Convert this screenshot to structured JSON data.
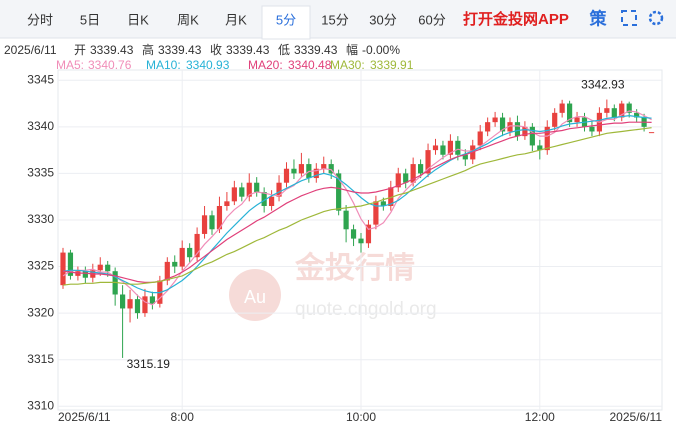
{
  "tabs": [
    "分时",
    "5日",
    "日K",
    "周K",
    "月K",
    "5分",
    "15分",
    "30分",
    "60分"
  ],
  "active_tab": 5,
  "app_link": "打开金投网APP",
  "tool": "策",
  "info": {
    "date": "2025/6/11",
    "open_label": "开",
    "open": 3339.43,
    "high_label": "高",
    "high": 3339.43,
    "close_label": "收",
    "close": 3339.43,
    "low_label": "低",
    "low": 3339.43,
    "change_label": "幅",
    "change": "-0.00%"
  },
  "watermark": {
    "logo": "Au",
    "text": "金投行情",
    "url": "quote.cngold.org"
  },
  "chart_data": {
    "type": "candlestick",
    "up_color": "#e8413e",
    "down_color": "#2ea44f",
    "grid": true,
    "ylim": [
      3309.6,
      3346.1
    ],
    "yticks": [
      3310,
      3315,
      3320,
      3325,
      3330,
      3335,
      3340,
      3345
    ],
    "categories": [
      "2025/6/11",
      null,
      null,
      null,
      null,
      null,
      null,
      null,
      null,
      null,
      null,
      null,
      null,
      null,
      null,
      null,
      "8:00",
      null,
      null,
      null,
      null,
      null,
      null,
      null,
      null,
      null,
      null,
      null,
      null,
      null,
      null,
      null,
      null,
      null,
      null,
      null,
      null,
      null,
      null,
      null,
      "10:00",
      null,
      null,
      null,
      null,
      null,
      null,
      null,
      null,
      null,
      null,
      null,
      null,
      null,
      null,
      null,
      null,
      null,
      null,
      null,
      null,
      null,
      null,
      null,
      "12:00",
      null,
      null,
      null,
      null,
      null,
      null,
      null,
      null,
      null,
      null,
      null,
      null,
      null,
      null,
      "2025/6/11"
    ],
    "open": [
      3323.0,
      3326.5,
      3324.0,
      3324.5,
      3323.8,
      3324.6,
      3325.2,
      3324.5,
      3322.0,
      3320.5,
      3321.5,
      3320.0,
      3321.8,
      3321.0,
      3323.5,
      3325.5,
      3325.0,
      3327.0,
      3326.0,
      3328.5,
      3330.5,
      3329.0,
      3331.5,
      3332.0,
      3333.5,
      3332.5,
      3334.0,
      3333.0,
      3331.5,
      3332.5,
      3334.0,
      3335.5,
      3335.0,
      3336.0,
      3334.5,
      3335.5,
      3336.0,
      3335.0,
      3331.0,
      3329.0,
      3328.0,
      3327.5,
      3329.5,
      3332.0,
      3331.5,
      3333.5,
      3335.0,
      3334.0,
      3336.0,
      3335.0,
      3337.5,
      3338.0,
      3337.0,
      3338.5,
      3337.0,
      3336.5,
      3338.0,
      3339.5,
      3340.5,
      3341.0,
      3339.5,
      3340.5,
      3339.0,
      3340.0,
      3338.0,
      3337.5,
      3340.0,
      3341.5,
      3342.5,
      3340.5,
      3341.0,
      3340.0,
      3339.5,
      3341.5,
      3342.0,
      3341.0,
      3342.5,
      3341.5,
      3341.0,
      3339.43
    ],
    "high": [
      3327.0,
      3326.8,
      3325.0,
      3325.0,
      3325.3,
      3326.0,
      3325.6,
      3324.9,
      3323.0,
      3322.5,
      3322.0,
      3322.6,
      3322.3,
      3324.0,
      3326.0,
      3326.2,
      3327.8,
      3327.5,
      3329.2,
      3331.5,
      3331.0,
      3332.5,
      3333.0,
      3334.2,
      3334.0,
      3335.0,
      3334.6,
      3333.5,
      3333.2,
      3334.8,
      3336.2,
      3336.5,
      3337.2,
      3336.6,
      3336.1,
      3336.8,
      3336.5,
      3335.4,
      3331.6,
      3329.5,
      3328.6,
      3330.0,
      3332.6,
      3332.4,
      3334.2,
      3335.6,
      3335.5,
      3336.7,
      3336.5,
      3338.2,
      3338.7,
      3338.5,
      3339.2,
      3339.0,
      3337.6,
      3338.6,
      3340.2,
      3341.0,
      3341.6,
      3341.5,
      3341.0,
      3341.2,
      3340.6,
      3340.4,
      3338.6,
      3340.7,
      3342.0,
      3342.9,
      3342.8,
      3341.6,
      3341.5,
      3340.6,
      3342.1,
      3342.93,
      3342.4,
      3342.8,
      3342.7,
      3341.9,
      3341.4,
      3339.43
    ],
    "low": [
      3322.6,
      3323.6,
      3323.5,
      3323.2,
      3323.3,
      3324.0,
      3323.9,
      3320.8,
      3315.19,
      3319.0,
      3319.4,
      3319.6,
      3320.4,
      3320.6,
      3323.0,
      3324.3,
      3324.6,
      3325.4,
      3325.6,
      3328.0,
      3328.4,
      3328.6,
      3331.0,
      3331.6,
      3332.0,
      3332.0,
      3332.5,
      3330.8,
      3331.0,
      3332.0,
      3333.5,
      3334.4,
      3334.6,
      3334.0,
      3334.0,
      3335.0,
      3334.4,
      3330.5,
      3327.6,
      3327.2,
      3326.5,
      3327.0,
      3329.0,
      3331.0,
      3331.0,
      3333.0,
      3333.4,
      3333.6,
      3334.5,
      3334.6,
      3337.0,
      3336.5,
      3336.6,
      3336.4,
      3335.8,
      3336.0,
      3337.5,
      3339.0,
      3340.0,
      3339.0,
      3339.0,
      3338.5,
      3338.6,
      3337.4,
      3336.5,
      3337.0,
      3339.6,
      3341.0,
      3340.0,
      3340.0,
      3339.5,
      3339.0,
      3339.0,
      3341.0,
      3340.6,
      3340.6,
      3341.0,
      3340.5,
      3339.5,
      3339.43
    ],
    "close": [
      3326.5,
      3324.0,
      3324.5,
      3323.8,
      3324.6,
      3325.2,
      3324.5,
      3322.0,
      3320.5,
      3321.5,
      3320.0,
      3321.8,
      3321.0,
      3323.5,
      3325.5,
      3325.0,
      3327.0,
      3326.0,
      3328.5,
      3330.5,
      3329.0,
      3331.5,
      3332.0,
      3333.5,
      3332.5,
      3334.0,
      3333.0,
      3331.5,
      3332.5,
      3334.0,
      3335.5,
      3335.0,
      3336.0,
      3334.5,
      3335.5,
      3336.0,
      3335.0,
      3331.0,
      3329.0,
      3328.0,
      3327.5,
      3329.5,
      3332.0,
      3331.5,
      3333.5,
      3335.0,
      3334.0,
      3336.0,
      3335.0,
      3337.5,
      3338.0,
      3337.0,
      3338.5,
      3337.0,
      3336.5,
      3338.0,
      3339.5,
      3340.5,
      3341.0,
      3339.5,
      3340.5,
      3339.0,
      3340.0,
      3338.0,
      3337.5,
      3340.0,
      3341.5,
      3342.5,
      3340.5,
      3341.0,
      3340.0,
      3339.5,
      3341.5,
      3342.0,
      3341.0,
      3342.5,
      3341.5,
      3341.0,
      3340.0,
      3339.43
    ],
    "series": [
      {
        "name": "MA5:",
        "legend_value": 3340.76,
        "color": "#f08db8",
        "values": [
          3324.0,
          3324.5,
          3324.6,
          3324.6,
          3324.7,
          3324.4,
          3324.4,
          3323.9,
          3323.4,
          3322.7,
          3321.9,
          3321.2,
          3320.9,
          3321.6,
          3322.4,
          3323.4,
          3324.5,
          3325.4,
          3326.4,
          3327.4,
          3328.2,
          3329.1,
          3330.3,
          3331.1,
          3331.7,
          3332.7,
          3333.0,
          3332.9,
          3332.7,
          3332.6,
          3333.3,
          3333.7,
          3334.6,
          3335.2,
          3335.3,
          3335.5,
          3335.4,
          3334.4,
          3333.3,
          3331.8,
          3330.1,
          3329.0,
          3329.2,
          3329.7,
          3330.8,
          3332.3,
          3333.2,
          3334.0,
          3334.7,
          3335.5,
          3336.1,
          3336.7,
          3337.2,
          3337.6,
          3337.4,
          3337.4,
          3337.9,
          3338.5,
          3339.1,
          3339.7,
          3340.1,
          3340.1,
          3340.0,
          3339.4,
          3339.0,
          3339.0,
          3339.4,
          3340.3,
          3340.8,
          3341.1,
          3341.1,
          3340.7,
          3340.5,
          3340.8,
          3340.8,
          3341.3,
          3341.7,
          3341.6,
          3341.2,
          3340.76
        ]
      },
      {
        "name": "MA10:",
        "legend_value": 3340.93,
        "color": "#27b2d6",
        "values": [
          3324.5,
          3324.6,
          3324.6,
          3324.5,
          3324.4,
          3324.3,
          3324.2,
          3323.9,
          3323.5,
          3323.1,
          3322.7,
          3322.4,
          3322.2,
          3322.2,
          3322.5,
          3323.0,
          3323.5,
          3324.2,
          3325.0,
          3325.9,
          3326.8,
          3327.7,
          3328.6,
          3329.4,
          3330.2,
          3331.0,
          3331.6,
          3332.1,
          3332.6,
          3333.0,
          3333.4,
          3333.8,
          3334.2,
          3334.5,
          3334.8,
          3335.0,
          3334.8,
          3334.4,
          3333.8,
          3333.1,
          3332.4,
          3331.8,
          3331.5,
          3331.5,
          3331.7,
          3332.1,
          3332.7,
          3333.4,
          3334.1,
          3334.8,
          3335.4,
          3335.9,
          3336.4,
          3336.8,
          3337.1,
          3337.4,
          3337.8,
          3338.2,
          3338.7,
          3339.1,
          3339.4,
          3339.6,
          3339.7,
          3339.6,
          3339.5,
          3339.6,
          3339.8,
          3340.1,
          3340.3,
          3340.4,
          3340.5,
          3340.6,
          3340.7,
          3340.9,
          3341.0,
          3341.1,
          3341.2,
          3341.1,
          3341.0,
          3340.93
        ]
      },
      {
        "name": "MA20:",
        "legend_value": 3340.48,
        "color": "#e0407a",
        "values": [
          3324.5,
          3324.4,
          3324.3,
          3324.3,
          3324.2,
          3324.2,
          3324.1,
          3324.0,
          3323.8,
          3323.6,
          3323.4,
          3323.3,
          3323.3,
          3323.4,
          3323.7,
          3324.0,
          3324.4,
          3324.9,
          3325.5,
          3326.1,
          3326.7,
          3327.3,
          3327.9,
          3328.4,
          3328.9,
          3329.4,
          3329.9,
          3330.3,
          3330.8,
          3331.3,
          3331.8,
          3332.2,
          3332.6,
          3332.9,
          3333.2,
          3333.4,
          3333.5,
          3333.4,
          3333.2,
          3333.0,
          3332.9,
          3332.9,
          3333.0,
          3333.2,
          3333.4,
          3333.7,
          3334.0,
          3334.4,
          3334.8,
          3335.3,
          3335.7,
          3336.1,
          3336.5,
          3336.8,
          3337.0,
          3337.3,
          3337.6,
          3337.9,
          3338.2,
          3338.5,
          3338.8,
          3339.0,
          3339.2,
          3339.3,
          3339.3,
          3339.4,
          3339.5,
          3339.6,
          3339.8,
          3339.9,
          3340.0,
          3340.1,
          3340.2,
          3340.3,
          3340.4,
          3340.4,
          3340.5,
          3340.5,
          3340.5,
          3340.48
        ]
      },
      {
        "name": "MA30:",
        "legend_value": 3339.91,
        "color": "#9fb83a",
        "values": [
          3323.0,
          3323.1,
          3323.1,
          3323.2,
          3323.2,
          3323.3,
          3323.3,
          3323.3,
          3323.2,
          3323.1,
          3323.1,
          3323.2,
          3323.3,
          3323.4,
          3323.6,
          3323.8,
          3324.0,
          3324.4,
          3324.8,
          3325.2,
          3325.5,
          3325.9,
          3326.3,
          3326.6,
          3327.0,
          3327.4,
          3327.8,
          3328.1,
          3328.5,
          3328.9,
          3329.2,
          3329.6,
          3330.0,
          3330.3,
          3330.6,
          3330.9,
          3331.1,
          3331.2,
          3331.3,
          3331.4,
          3331.5,
          3331.7,
          3331.9,
          3332.2,
          3332.4,
          3332.7,
          3332.9,
          3333.2,
          3333.5,
          3333.8,
          3334.1,
          3334.4,
          3334.7,
          3335.0,
          3335.3,
          3335.7,
          3336.0,
          3336.2,
          3336.4,
          3336.6,
          3336.8,
          3337.0,
          3337.1,
          3337.3,
          3337.5,
          3337.7,
          3337.9,
          3338.1,
          3338.3,
          3338.5,
          3338.7,
          3338.9,
          3339.1,
          3339.3,
          3339.4,
          3339.5,
          3339.6,
          3339.7,
          3339.8,
          3339.91
        ]
      }
    ]
  }
}
